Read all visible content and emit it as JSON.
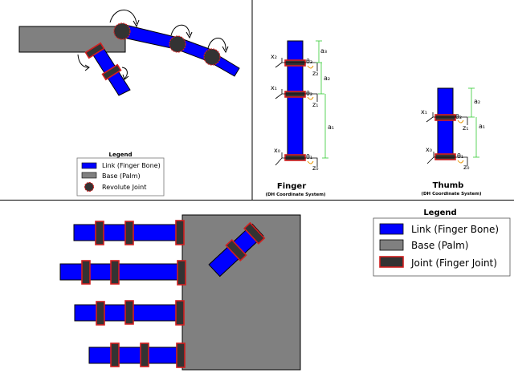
{
  "top_left": {
    "legend": {
      "title": "Legend",
      "items": [
        {
          "label": "Link (Finger Bone)",
          "color": "#0000ff"
        },
        {
          "label": "Base (Palm)",
          "color": "#808080"
        },
        {
          "label": "Revolute Joint",
          "color": "#333333"
        }
      ]
    }
  },
  "finger": {
    "title": "Finger",
    "subtitle": "(DH Coordinate System)",
    "x_labels": [
      "x₂",
      "x₁",
      "x₀"
    ],
    "z_labels": [
      "z₂",
      "z₁",
      "z₀"
    ],
    "theta_labels": [
      "θ₃",
      "θ₂",
      "θ₁"
    ],
    "a_labels": [
      "a₃",
      "a₂",
      "a₁"
    ]
  },
  "thumb": {
    "title": "Thumb",
    "subtitle": "(DH Coordinate System)",
    "x_labels": [
      "x₁",
      "x₀"
    ],
    "z_labels": [
      "z₁",
      "z₀"
    ],
    "theta_labels": [
      "θ₂",
      "θ₁"
    ],
    "a_labels": [
      "a₂",
      "a₁"
    ]
  },
  "bottom": {
    "legend": {
      "title": "Legend",
      "items": [
        {
          "label": "Link (Finger Bone)",
          "color": "#0000ff"
        },
        {
          "label": "Base (Palm)",
          "color": "#808080"
        },
        {
          "label": "Joint (Finger Joint)",
          "color": "#333333"
        }
      ]
    }
  },
  "colors": {
    "link": "#0000ff",
    "base": "#808080",
    "joint_fill": "#333333",
    "joint_edge": "#d11f1f",
    "dimension": "#33cc33",
    "rotation": "#e69500"
  }
}
